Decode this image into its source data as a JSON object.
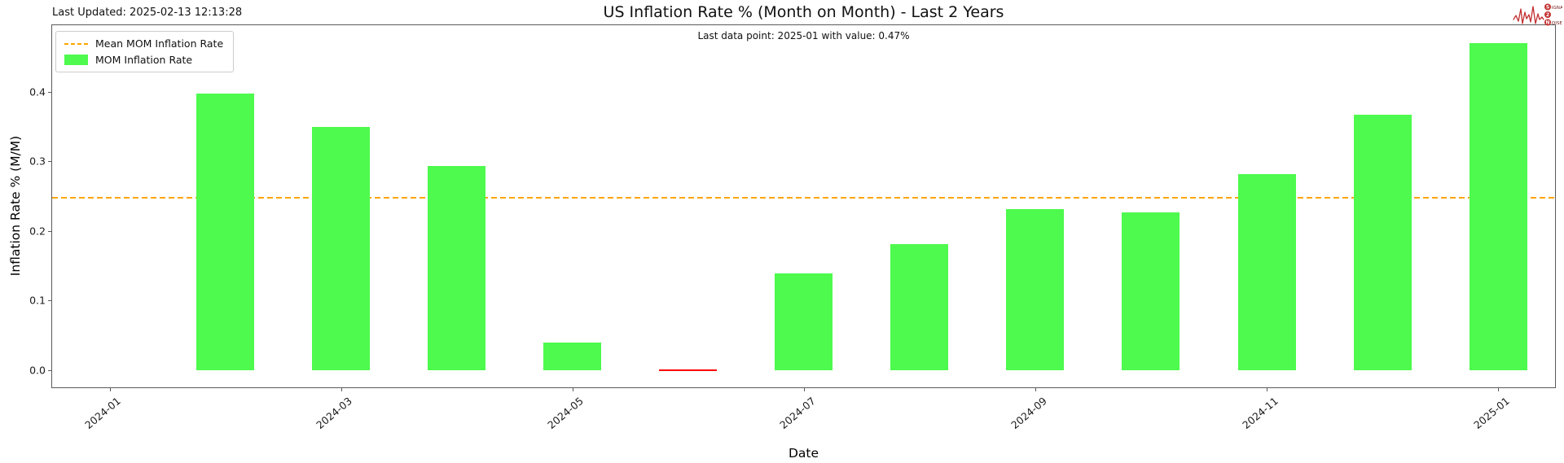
{
  "page": {
    "last_updated": "Last Updated: 2025-02-13 12:13:28"
  },
  "logo": {
    "word1_initial": "S",
    "word1_rest": "IGNAL",
    "word2_initial": "2",
    "word2_rest": "",
    "word3_initial": "N",
    "word3_rest": "OISE",
    "color": "#c22f2f"
  },
  "legend": {
    "mean_label": "Mean MOM Inflation Rate",
    "series_label": "MOM Inflation Rate"
  },
  "chart_data": {
    "type": "bar",
    "title": "US Inflation Rate % (Month on Month) - Last 2 Years",
    "subtitle": "Last data point: 2025-01 with value: 0.47%",
    "xlabel": "Date",
    "ylabel": "Inflation Rate % (M/M)",
    "categories": [
      "2024-02",
      "2024-03",
      "2024-04",
      "2024-05",
      "2024-06",
      "2024-07",
      "2024-08",
      "2024-09",
      "2024-10",
      "2024-11",
      "2024-12",
      "2025-01"
    ],
    "values": [
      0.398,
      0.349,
      0.293,
      0.04,
      0.0,
      0.139,
      0.181,
      0.231,
      0.227,
      0.282,
      0.367,
      0.47
    ],
    "bar_colors": [
      "#4dfa4d",
      "#4dfa4d",
      "#4dfa4d",
      "#4dfa4d",
      "#ff0000",
      "#4dfa4d",
      "#4dfa4d",
      "#4dfa4d",
      "#4dfa4d",
      "#4dfa4d",
      "#4dfa4d",
      "#4dfa4d"
    ],
    "bar_color": "#4dfa4d",
    "flat_marker_color": "#ff0000",
    "mean_value": 0.248,
    "mean_line_color": "#ffa500",
    "x_ticks": [
      "2024-01",
      "2024-03",
      "2024-05",
      "2024-07",
      "2024-09",
      "2024-11",
      "2025-01"
    ],
    "y_ticks": [
      "0.0",
      "0.1",
      "0.2",
      "0.3",
      "0.4"
    ],
    "ylim": [
      -0.026,
      0.497
    ],
    "grid": false,
    "legend_position": "upper left"
  }
}
